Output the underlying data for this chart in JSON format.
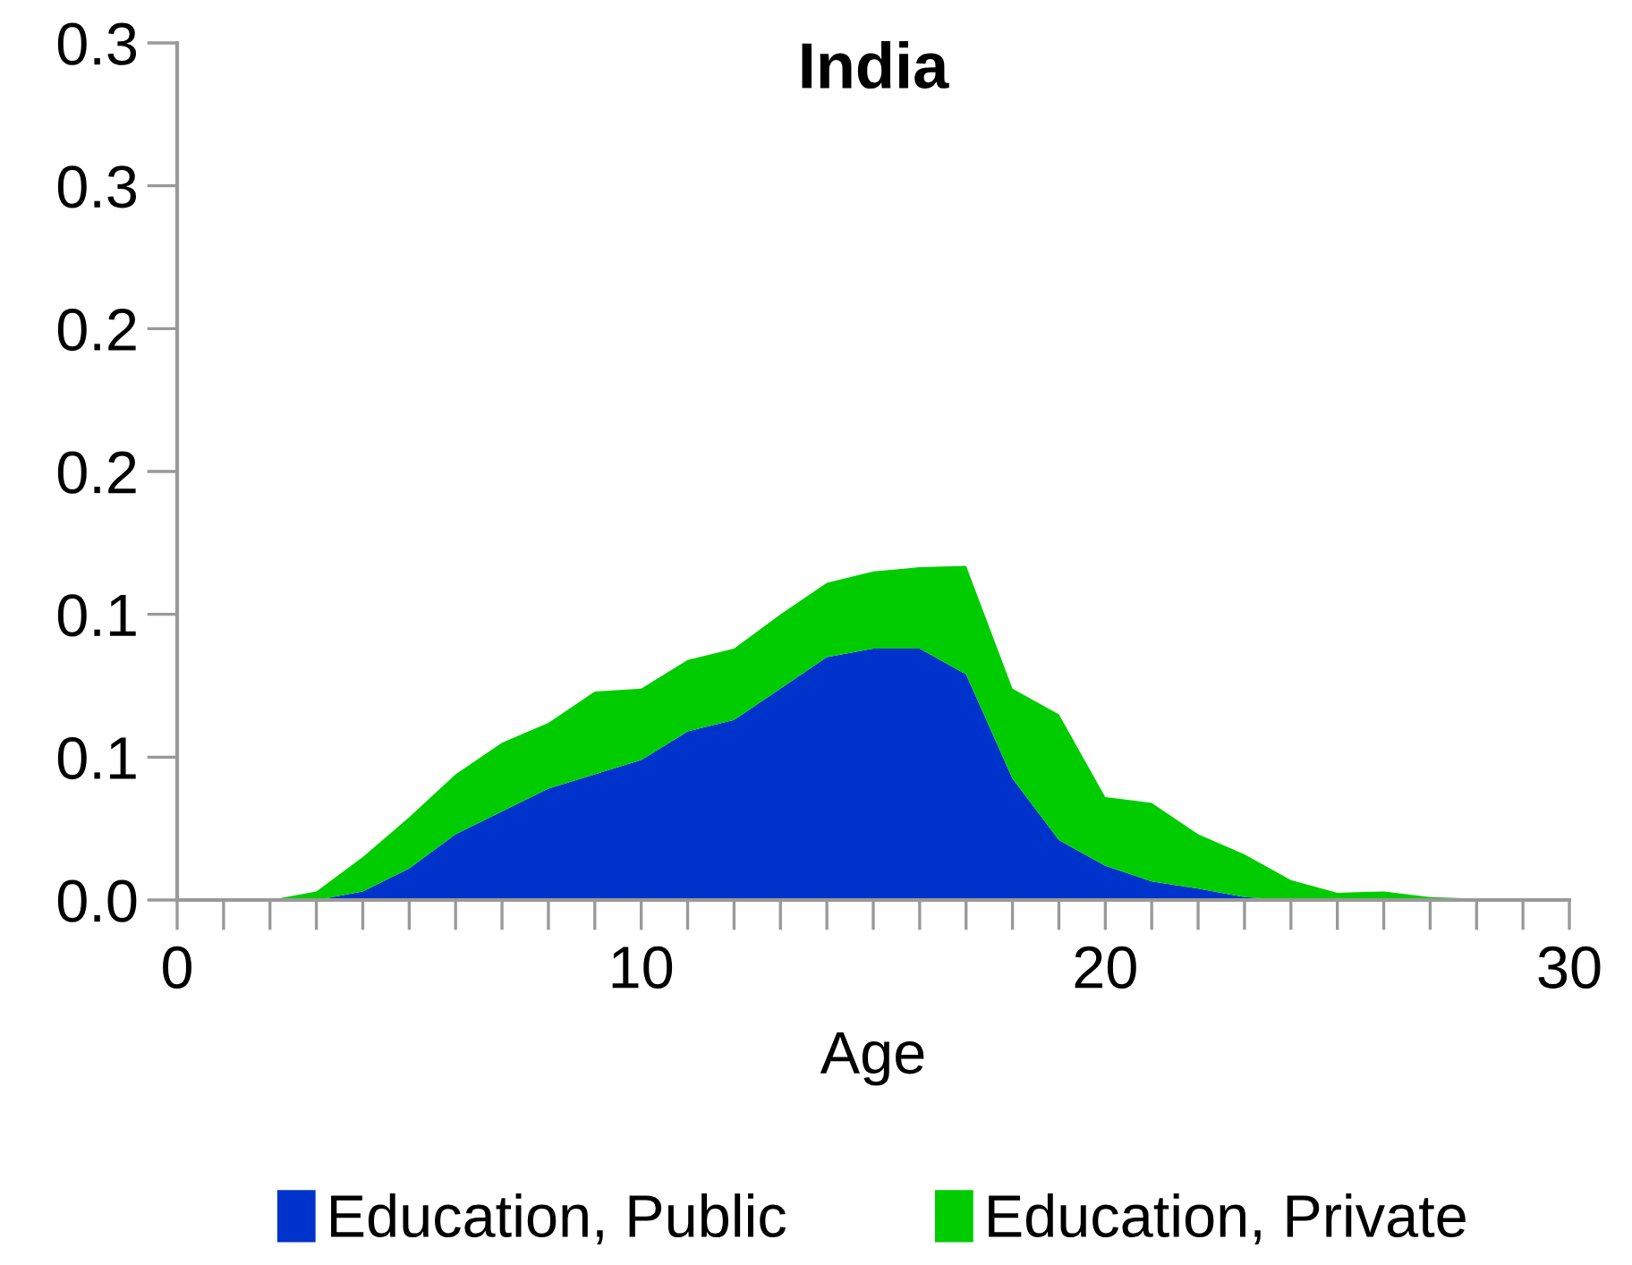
{
  "chart_data": {
    "type": "area",
    "stacked": true,
    "title": "India",
    "xlabel": "Age",
    "x": [
      2,
      3,
      4,
      5,
      6,
      7,
      8,
      9,
      10,
      11,
      12,
      13,
      14,
      15,
      16,
      17,
      18,
      19,
      20,
      21,
      22,
      23,
      24,
      25,
      26,
      27,
      28,
      29
    ],
    "series": [
      {
        "name": "Education, Public",
        "color": "#0033cc",
        "values": [
          0,
          0,
          0.003,
          0.011,
          0.023,
          0.031,
          0.039,
          0.044,
          0.049,
          0.059,
          0.063,
          0.074,
          0.085,
          0.088,
          0.088,
          0.079,
          0.0425,
          0.021,
          0.012,
          0.0065,
          0.004,
          0.001,
          0,
          0,
          0,
          0,
          0,
          0
        ]
      },
      {
        "name": "Education, Private",
        "color": "#00cc00",
        "values": [
          0,
          0.003,
          0.012,
          0.018,
          0.021,
          0.024,
          0.023,
          0.029,
          0.025,
          0.025,
          0.025,
          0.026,
          0.026,
          0.027,
          0.0285,
          0.038,
          0.0315,
          0.044,
          0.024,
          0.0275,
          0.019,
          0.015,
          0.007,
          0.0025,
          0.003,
          0.001,
          0.0005,
          0
        ]
      }
    ],
    "xlim": [
      0,
      30
    ],
    "xticks": [
      0,
      10,
      20,
      30
    ],
    "ylim": [
      0,
      0.3
    ],
    "yticks": [
      {
        "value": 0,
        "label": "0.0"
      },
      {
        "value": 0.05,
        "label": "0.1"
      },
      {
        "value": 0.1,
        "label": "0.1"
      },
      {
        "value": 0.15,
        "label": "0.2"
      },
      {
        "value": 0.2,
        "label": "0.2"
      },
      {
        "value": 0.25,
        "label": "0.3"
      },
      {
        "value": 0.3,
        "label": "0.3"
      }
    ],
    "grid": false,
    "legend": "bottom"
  }
}
